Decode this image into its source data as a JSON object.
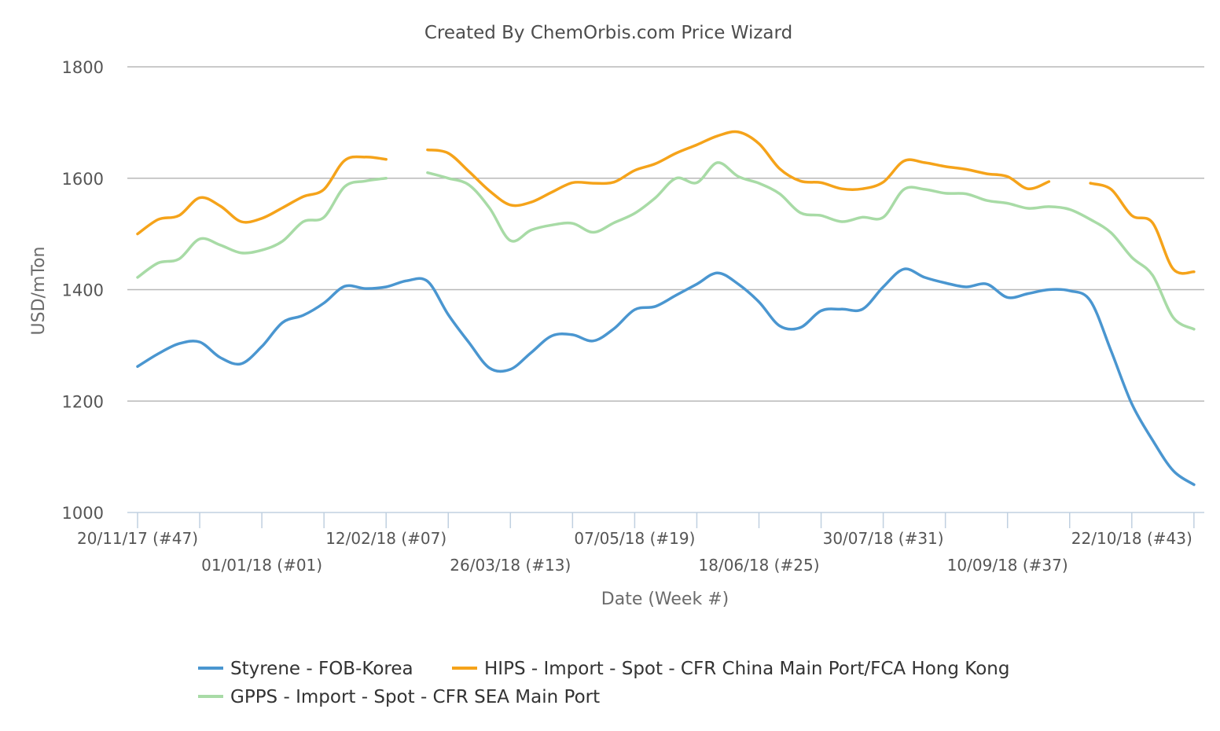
{
  "chart_data": {
    "type": "line",
    "title": "Created By ChemOrbis.com Price Wizard",
    "xlabel": "Date (Week #)",
    "ylabel": "USD/mTon",
    "ylim": [
      1000,
      1800
    ],
    "yticks": [
      1000,
      1200,
      1400,
      1600,
      1800
    ],
    "grid": true,
    "legend_position": "bottom",
    "x_tick_labels": [
      {
        "label": "20/11/17 (#47)",
        "week_index": 0
      },
      {
        "label": "01/01/18 (#01)",
        "week_index": 6
      },
      {
        "label": "12/02/18 (#07)",
        "week_index": 12
      },
      {
        "label": "26/03/18 (#13)",
        "week_index": 18
      },
      {
        "label": "07/05/18 (#19)",
        "week_index": 24
      },
      {
        "label": "18/06/18 (#25)",
        "week_index": 30
      },
      {
        "label": "30/07/18 (#31)",
        "week_index": 36
      },
      {
        "label": "10/09/18 (#37)",
        "week_index": 42
      },
      {
        "label": "22/10/18 (#43)",
        "week_index": 48
      }
    ],
    "series": [
      {
        "name": "Styrene - FOB-Korea",
        "color": "#4a96d0",
        "x": [
          0,
          1,
          2,
          3,
          4,
          5,
          6,
          7,
          8,
          9,
          10,
          11,
          12,
          13,
          14,
          15,
          16,
          17,
          18,
          19,
          20,
          21,
          22,
          23,
          24,
          25,
          26,
          27,
          28,
          29,
          30,
          31,
          32,
          33,
          34,
          35,
          36,
          37,
          38,
          39,
          40,
          41,
          42,
          43,
          44,
          45,
          46,
          47,
          48,
          49,
          50,
          51
        ],
        "values": [
          1262,
          1285,
          1303,
          1306,
          1278,
          1267,
          1298,
          1341,
          1354,
          1376,
          1406,
          1402,
          1405,
          1416,
          1415,
          1355,
          1305,
          1259,
          1257,
          1287,
          1317,
          1319,
          1308,
          1330,
          1364,
          1370,
          1390,
          1410,
          1430,
          1410,
          1378,
          1335,
          1332,
          1362,
          1365,
          1365,
          1405,
          1437,
          1422,
          1412,
          1405,
          1410,
          1386,
          1393,
          1400,
          1398,
          1380,
          1290,
          1195,
          1130,
          1075,
          1050
        ]
      },
      {
        "name": "HIPS - Import - Spot - CFR China Main Port/FCA Hong Kong",
        "color": "#f5a31a",
        "x": [
          0,
          1,
          2,
          3,
          4,
          5,
          6,
          7,
          8,
          9,
          10,
          11,
          12,
          14,
          15,
          16,
          17,
          18,
          19,
          20,
          21,
          22,
          23,
          24,
          25,
          26,
          27,
          28,
          29,
          30,
          31,
          32,
          33,
          34,
          35,
          36,
          37,
          38,
          39,
          40,
          41,
          42,
          43,
          44,
          46,
          47,
          48,
          49,
          50,
          51
        ],
        "values": [
          1500,
          1526,
          1533,
          1565,
          1550,
          1522,
          1528,
          1547,
          1567,
          1580,
          1632,
          1638,
          1634,
          1651,
          1645,
          1612,
          1577,
          1552,
          1557,
          1575,
          1592,
          1591,
          1593,
          1614,
          1626,
          1645,
          1660,
          1676,
          1683,
          1662,
          1617,
          1595,
          1592,
          1581,
          1581,
          1593,
          1631,
          1628,
          1621,
          1616,
          1608,
          1603,
          1581,
          1594,
          1591,
          1580,
          1533,
          1520,
          1437,
          1432
        ]
      },
      {
        "name": "GPPS - Import - Spot - CFR SEA Main Port",
        "color": "#a8dba6",
        "x": [
          0,
          1,
          2,
          3,
          4,
          5,
          6,
          7,
          8,
          9,
          10,
          11,
          12,
          14,
          15,
          16,
          17,
          18,
          19,
          20,
          21,
          22,
          23,
          24,
          25,
          26,
          27,
          28,
          29,
          30,
          31,
          32,
          33,
          34,
          35,
          36,
          37,
          38,
          39,
          40,
          41,
          42,
          43,
          44,
          45,
          46,
          47,
          48,
          49,
          50,
          51
        ],
        "values": [
          1422,
          1448,
          1455,
          1491,
          1480,
          1466,
          1471,
          1487,
          1522,
          1530,
          1585,
          1595,
          1600,
          1610,
          1600,
          1588,
          1546,
          1488,
          1507,
          1516,
          1519,
          1503,
          1520,
          1537,
          1565,
          1600,
          1592,
          1628,
          1603,
          1591,
          1572,
          1538,
          1533,
          1522,
          1530,
          1530,
          1580,
          1580,
          1573,
          1572,
          1560,
          1555,
          1546,
          1549,
          1544,
          1526,
          1502,
          1458,
          1426,
          1350,
          1329
        ]
      }
    ]
  }
}
